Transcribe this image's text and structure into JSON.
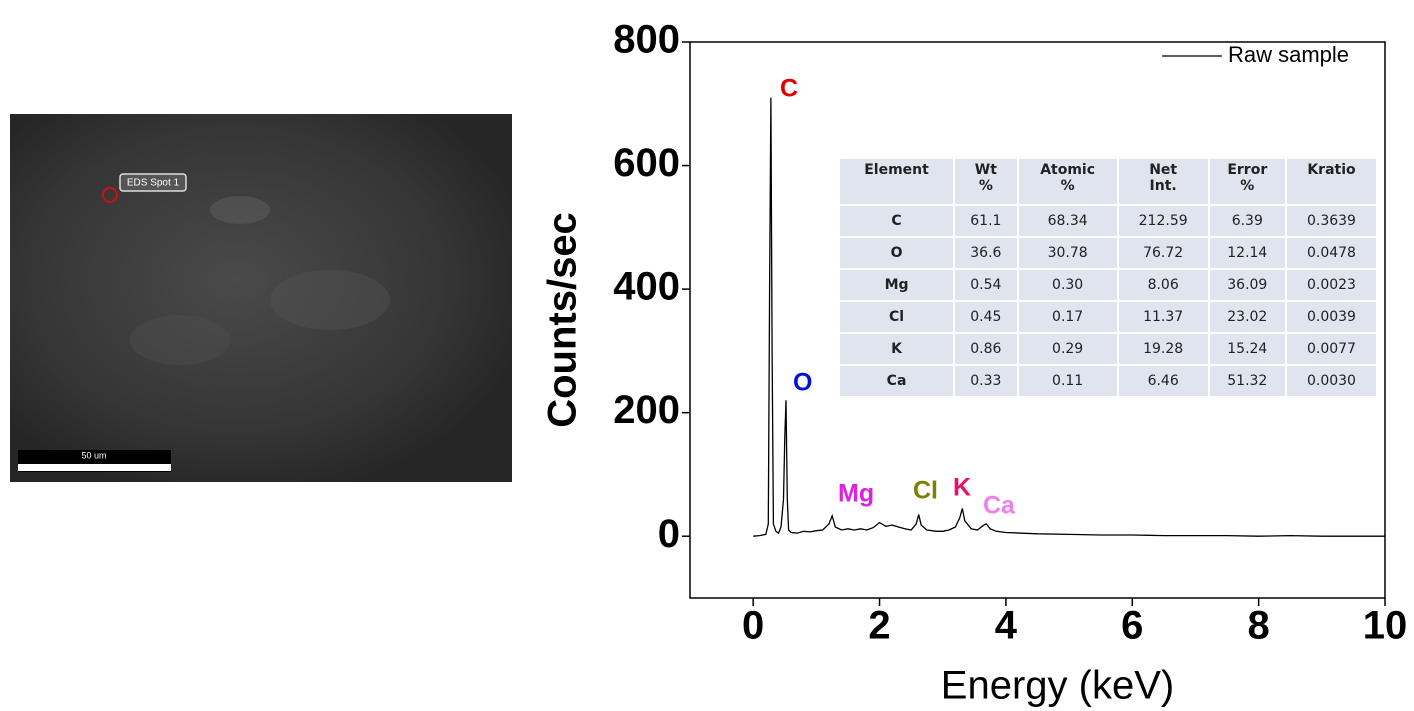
{
  "sem_image": {
    "spot_label": "EDS Spot 1",
    "scale_label": "50 um"
  },
  "chart_data": {
    "type": "line",
    "x_label": "Energy (keV)",
    "y_label": "Counts/sec",
    "xlim": [
      -1,
      10
    ],
    "xticks": [
      0,
      2,
      4,
      6,
      8,
      10
    ],
    "ylim": [
      -100,
      800
    ],
    "yticks": [
      0,
      200,
      400,
      600,
      800
    ],
    "legend": "top-right",
    "x": [
      0,
      0.1,
      0.2,
      0.24,
      0.26,
      0.28,
      0.3,
      0.32,
      0.36,
      0.4,
      0.44,
      0.48,
      0.5,
      0.52,
      0.54,
      0.56,
      0.6,
      0.7,
      0.8,
      0.9,
      1.0,
      1.1,
      1.2,
      1.25,
      1.3,
      1.4,
      1.5,
      1.6,
      1.7,
      1.8,
      1.9,
      2.0,
      2.1,
      2.2,
      2.3,
      2.4,
      2.5,
      2.58,
      2.62,
      2.66,
      2.75,
      2.9,
      3.0,
      3.1,
      3.2,
      3.27,
      3.31,
      3.35,
      3.45,
      3.55,
      3.65,
      3.69,
      3.75,
      3.85,
      4.0,
      4.5,
      5,
      5.5,
      6,
      6.5,
      7,
      7.5,
      8,
      8.5,
      9,
      9.5,
      10
    ],
    "series": [
      {
        "name": "Raw sample",
        "color": "#000000",
        "values": [
          0,
          1,
          3,
          20,
          400,
          710,
          300,
          20,
          8,
          5,
          15,
          60,
          160,
          220,
          60,
          10,
          6,
          5,
          8,
          7,
          9,
          10,
          20,
          33,
          15,
          10,
          12,
          10,
          12,
          10,
          14,
          22,
          16,
          18,
          15,
          12,
          10,
          20,
          35,
          18,
          10,
          8,
          8,
          10,
          15,
          30,
          45,
          25,
          12,
          10,
          18,
          20,
          12,
          8,
          6,
          4,
          3,
          2,
          2,
          1,
          1,
          1,
          0,
          1,
          0,
          0,
          0
        ]
      }
    ],
    "annotations": [
      {
        "text": "C",
        "color": "#e00000"
      },
      {
        "text": "O",
        "color": "#0010dd"
      },
      {
        "text": "Mg",
        "color": "#e020e0"
      },
      {
        "text": "Cl",
        "color": "#808000"
      },
      {
        "text": "K",
        "color": "#e8106a"
      },
      {
        "text": "Ca",
        "color": "#f080f0"
      }
    ],
    "table": {
      "header": [
        [
          "Element"
        ],
        [
          "Wt",
          "%"
        ],
        [
          "Atomic",
          "%"
        ],
        [
          "Net",
          "Int."
        ],
        [
          "Error",
          "%"
        ],
        [
          "Kratio"
        ]
      ],
      "rows": [
        [
          "C",
          "61.1",
          "68.34",
          "212.59",
          "6.39",
          "0.3639"
        ],
        [
          "O",
          "36.6",
          "30.78",
          "76.72",
          "12.14",
          "0.0478"
        ],
        [
          "Mg",
          "0.54",
          "0.30",
          "8.06",
          "36.09",
          "0.0023"
        ],
        [
          "Cl",
          "0.45",
          "0.17",
          "11.37",
          "23.02",
          "0.0039"
        ],
        [
          "K",
          "0.86",
          "0.29",
          "19.28",
          "15.24",
          "0.0077"
        ],
        [
          "Ca",
          "0.33",
          "0.11",
          "6.46",
          "51.32",
          "0.0030"
        ]
      ]
    }
  }
}
